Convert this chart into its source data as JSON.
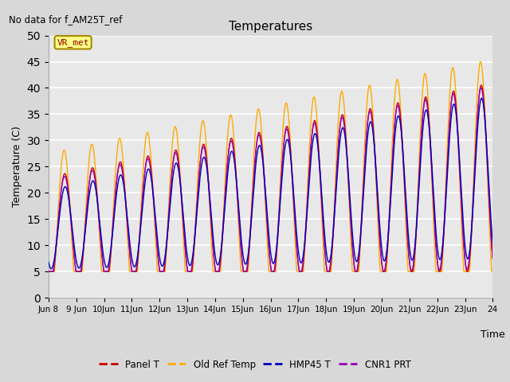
{
  "title": "Temperatures",
  "ylabel": "Temperature (C)",
  "xlabel": "Time",
  "no_data_text": "No data for f_AM25T_ref",
  "vr_met_label": "VR_met",
  "ylim": [
    0,
    50
  ],
  "yticks": [
    0,
    5,
    10,
    15,
    20,
    25,
    30,
    35,
    40,
    45,
    50
  ],
  "xtick_labels": [
    "Jun 8",
    "9 Jun",
    "10Jun",
    "11Jun",
    "12Jun",
    "13Jun",
    "14Jun",
    "15Jun",
    "16Jun",
    "17Jun",
    "18Jun",
    "19Jun",
    "20Jun",
    "21Jun",
    "22Jun",
    "23Jun",
    "24"
  ],
  "colors": {
    "panel_t": "#cc0000",
    "old_ref": "#ffaa00",
    "hmp45": "#0000bb",
    "cnr1": "#9900bb"
  },
  "legend_labels": [
    "Panel T",
    "Old Ref Temp",
    "HMP45 T",
    "CNR1 PRT"
  ],
  "fig_facecolor": "#d8d8d8",
  "ax_facecolor": "#e8e8e8",
  "num_days": 16,
  "samples_per_day": 288
}
